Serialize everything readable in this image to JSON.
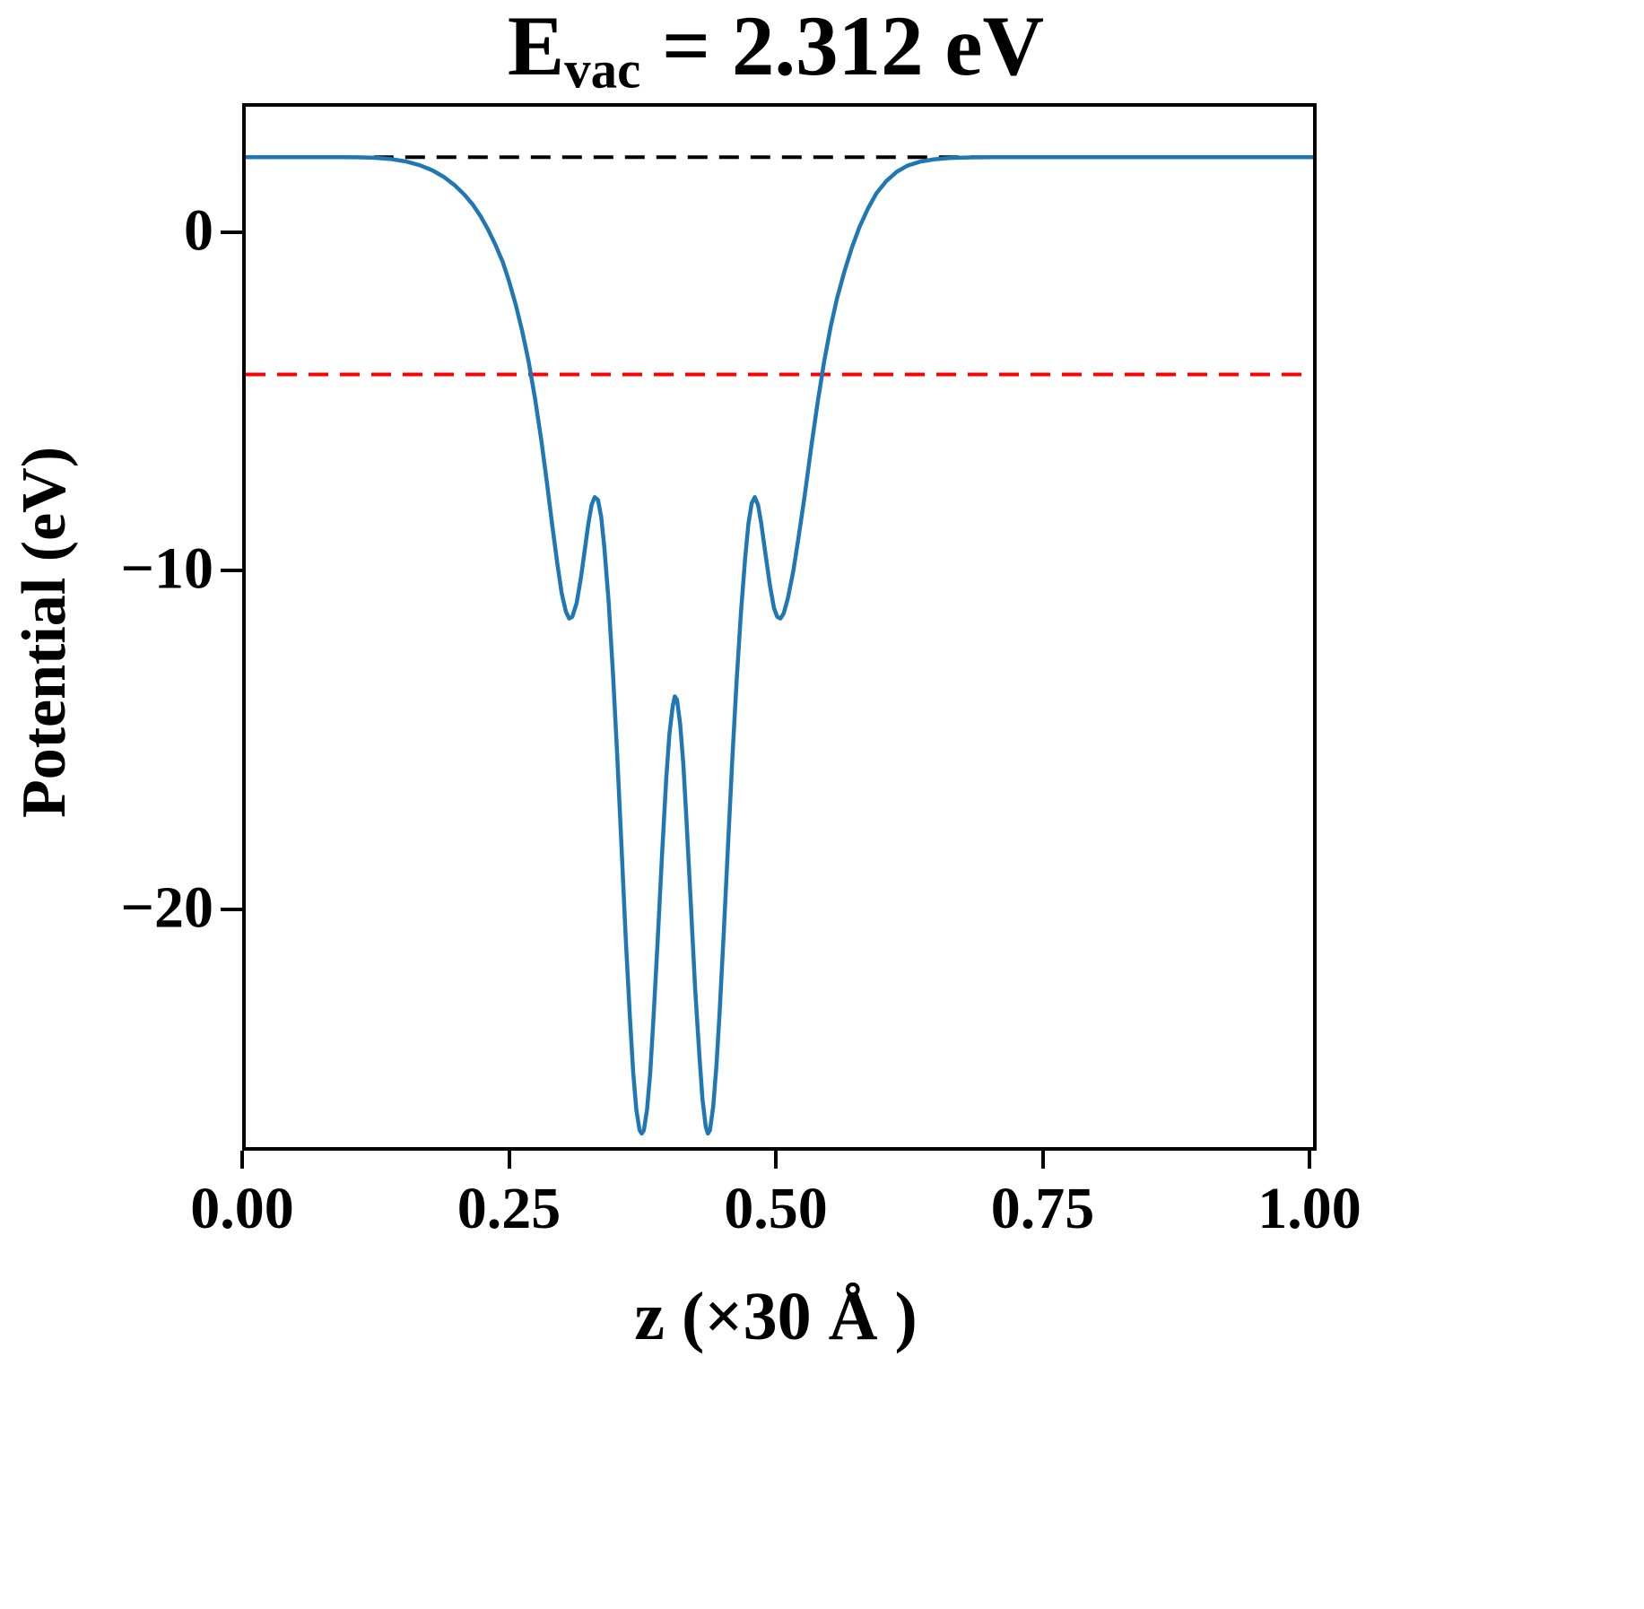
{
  "title": {
    "prefix": "E",
    "subscript": "vac",
    "suffix": " = 2.312 eV"
  },
  "axes": {
    "ylabel": "Potential (eV)",
    "xlabel": "z (×30 Å )",
    "x_ticks": [
      {
        "value": 0.0,
        "label": "0.00"
      },
      {
        "value": 0.25,
        "label": "0.25"
      },
      {
        "value": 0.5,
        "label": "0.50"
      },
      {
        "value": 0.75,
        "label": "0.75"
      },
      {
        "value": 1.0,
        "label": "1.00"
      }
    ],
    "y_ticks": [
      {
        "value": 0,
        "label": "0"
      },
      {
        "value": -10,
        "label": "−10"
      },
      {
        "value": -20,
        "label": "−20"
      }
    ]
  },
  "colors": {
    "curve": "#1f77b4",
    "vacuum_line": "#000000",
    "fermi_line": "#ff0000",
    "axis": "#000000",
    "background": "#ffffff"
  },
  "chart_data": {
    "type": "line",
    "title": "E_vac = 2.312 eV",
    "xlabel": "z (×30 Å )",
    "ylabel": "Potential (eV)",
    "xlim": [
      0.0,
      1.0
    ],
    "ylim": [
      -26.9,
      3.8
    ],
    "grid": false,
    "legend": "none",
    "evac_eV": 2.312,
    "series": [
      {
        "name": "vacuum-level",
        "color": "#000000",
        "style": "dashed",
        "width": 4,
        "points": [
          [
            0.12,
            2.312
          ],
          [
            0.7,
            2.312
          ]
        ]
      },
      {
        "name": "fermi-level",
        "color": "#ff0000",
        "style": "dashed",
        "width": 4,
        "points": [
          [
            0.0,
            -4.1
          ],
          [
            1.0,
            -4.1
          ]
        ]
      },
      {
        "name": "potential",
        "color": "#1f77b4",
        "style": "solid",
        "width": 4.5,
        "points": [
          [
            0.0,
            2.312
          ],
          [
            0.05,
            2.312
          ],
          [
            0.09,
            2.312
          ],
          [
            0.105,
            2.308
          ],
          [
            0.12,
            2.295
          ],
          [
            0.135,
            2.26
          ],
          [
            0.15,
            2.185
          ],
          [
            0.163,
            2.075
          ],
          [
            0.175,
            1.92
          ],
          [
            0.186,
            1.72
          ],
          [
            0.196,
            1.48
          ],
          [
            0.205,
            1.2
          ],
          [
            0.213,
            0.9
          ],
          [
            0.22,
            0.57
          ],
          [
            0.227,
            0.18
          ],
          [
            0.234,
            -0.28
          ],
          [
            0.241,
            -0.8
          ],
          [
            0.247,
            -1.38
          ],
          [
            0.253,
            -2.05
          ],
          [
            0.259,
            -2.82
          ],
          [
            0.265,
            -3.72
          ],
          [
            0.271,
            -4.8
          ],
          [
            0.277,
            -6.05
          ],
          [
            0.282,
            -7.25
          ],
          [
            0.287,
            -8.5
          ],
          [
            0.292,
            -9.7
          ],
          [
            0.296,
            -10.55
          ],
          [
            0.3,
            -11.1
          ],
          [
            0.303,
            -11.3
          ],
          [
            0.306,
            -11.25
          ],
          [
            0.31,
            -10.85
          ],
          [
            0.314,
            -10.1
          ],
          [
            0.318,
            -9.2
          ],
          [
            0.321,
            -8.5
          ],
          [
            0.324,
            -7.95
          ],
          [
            0.327,
            -7.72
          ],
          [
            0.33,
            -7.8
          ],
          [
            0.333,
            -8.3
          ],
          [
            0.336,
            -9.2
          ],
          [
            0.34,
            -10.8
          ],
          [
            0.344,
            -12.9
          ],
          [
            0.348,
            -15.3
          ],
          [
            0.352,
            -18.0
          ],
          [
            0.356,
            -20.7
          ],
          [
            0.36,
            -23.1
          ],
          [
            0.363,
            -24.7
          ],
          [
            0.366,
            -25.8
          ],
          [
            0.369,
            -26.4
          ],
          [
            0.371,
            -26.5
          ],
          [
            0.373,
            -26.4
          ],
          [
            0.376,
            -25.8
          ],
          [
            0.379,
            -24.7
          ],
          [
            0.382,
            -23.1
          ],
          [
            0.386,
            -20.8
          ],
          [
            0.39,
            -18.3
          ],
          [
            0.394,
            -16.0
          ],
          [
            0.397,
            -14.7
          ],
          [
            0.4,
            -13.9
          ],
          [
            0.402,
            -13.6
          ],
          [
            0.404,
            -13.7
          ],
          [
            0.407,
            -14.4
          ],
          [
            0.41,
            -15.6
          ],
          [
            0.413,
            -17.3
          ],
          [
            0.417,
            -19.7
          ],
          [
            0.421,
            -22.2
          ],
          [
            0.425,
            -24.2
          ],
          [
            0.428,
            -25.5
          ],
          [
            0.431,
            -26.3
          ],
          [
            0.433,
            -26.5
          ],
          [
            0.435,
            -26.4
          ],
          [
            0.438,
            -25.7
          ],
          [
            0.441,
            -24.5
          ],
          [
            0.444,
            -22.9
          ],
          [
            0.448,
            -20.5
          ],
          [
            0.452,
            -17.9
          ],
          [
            0.456,
            -15.4
          ],
          [
            0.46,
            -13.1
          ],
          [
            0.464,
            -11.1
          ],
          [
            0.468,
            -9.5
          ],
          [
            0.471,
            -8.5
          ],
          [
            0.474,
            -7.9
          ],
          [
            0.477,
            -7.72
          ],
          [
            0.48,
            -7.95
          ],
          [
            0.483,
            -8.5
          ],
          [
            0.487,
            -9.4
          ],
          [
            0.491,
            -10.3
          ],
          [
            0.495,
            -11.0
          ],
          [
            0.498,
            -11.25
          ],
          [
            0.501,
            -11.3
          ],
          [
            0.504,
            -11.15
          ],
          [
            0.508,
            -10.7
          ],
          [
            0.513,
            -9.9
          ],
          [
            0.518,
            -8.9
          ],
          [
            0.524,
            -7.6
          ],
          [
            0.53,
            -6.2
          ],
          [
            0.536,
            -4.9
          ],
          [
            0.542,
            -3.7
          ],
          [
            0.548,
            -2.7
          ],
          [
            0.554,
            -1.85
          ],
          [
            0.561,
            -1.05
          ],
          [
            0.568,
            -0.35
          ],
          [
            0.575,
            0.25
          ],
          [
            0.583,
            0.8
          ],
          [
            0.591,
            1.25
          ],
          [
            0.6,
            1.6
          ],
          [
            0.61,
            1.88
          ],
          [
            0.62,
            2.06
          ],
          [
            0.632,
            2.18
          ],
          [
            0.645,
            2.25
          ],
          [
            0.66,
            2.29
          ],
          [
            0.68,
            2.305
          ],
          [
            0.7,
            2.31
          ],
          [
            0.75,
            2.312
          ],
          [
            0.85,
            2.312
          ],
          [
            1.0,
            2.312
          ]
        ]
      }
    ]
  }
}
